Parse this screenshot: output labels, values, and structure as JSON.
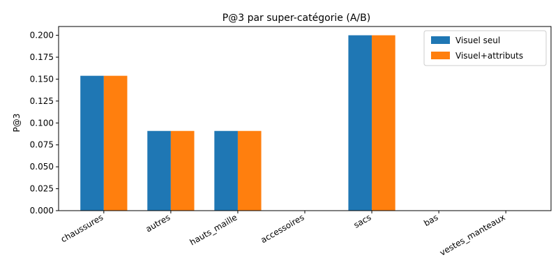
{
  "chart_data": {
    "type": "bar",
    "title": "P@3 par super-catégorie (A/B)",
    "xlabel": "",
    "ylabel": "P@3",
    "categories": [
      "chaussures",
      "autres",
      "hauts_maille",
      "accessoires",
      "sacs",
      "bas",
      "vestes_manteaux"
    ],
    "series": [
      {
        "name": "Visuel seul",
        "color": "#1f77b4",
        "values": [
          0.1538,
          0.0909,
          0.0909,
          0.0,
          0.2,
          0.0,
          0.0
        ]
      },
      {
        "name": "Visuel+attributs",
        "color": "#ff7f0e",
        "values": [
          0.1538,
          0.0909,
          0.0909,
          0.0,
          0.2,
          0.0,
          0.0
        ]
      }
    ],
    "ylim": [
      0,
      0.21
    ],
    "yticks": [
      "0.000",
      "0.025",
      "0.050",
      "0.075",
      "0.100",
      "0.125",
      "0.150",
      "0.175",
      "0.200"
    ],
    "grid": false,
    "legend_position": "top-right"
  }
}
